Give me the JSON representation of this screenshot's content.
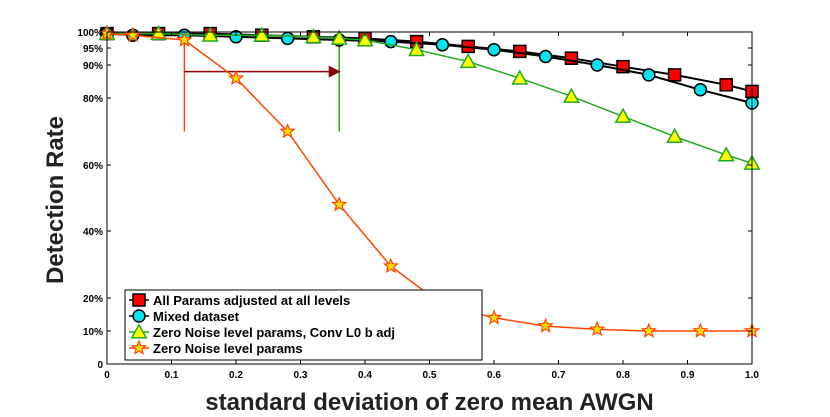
{
  "chart_data": {
    "type": "line",
    "title": "",
    "xlabel": "standard deviation of zero mean AWGN",
    "ylabel": "Detection Rate",
    "xlim": [
      0,
      1.0
    ],
    "ylim": [
      0,
      1.0
    ],
    "grid": false,
    "legend_position": "bottom-left",
    "x_ticks": [
      0,
      0.1,
      0.2,
      0.3,
      0.4,
      0.5,
      0.6,
      0.7,
      0.8,
      0.9,
      1.0
    ],
    "x_tick_labels": [
      "0",
      "0.1",
      "0.2",
      "0.3",
      "0.4",
      "0.5",
      "0.6",
      "0.7",
      "0.8",
      "0.9",
      "1.0"
    ],
    "y_ticks": [
      0,
      0.1,
      0.2,
      0.4,
      0.6,
      0.8,
      0.9,
      0.95,
      1.0
    ],
    "y_tick_labels": [
      "0",
      "10%",
      "20%",
      "40%",
      "60%",
      "80%",
      "90%",
      "95%",
      "100%"
    ],
    "series": [
      {
        "name": "All Params adjusted at all levels",
        "marker": "square",
        "line_color": "#000000",
        "marker_fill": "#ff0000",
        "marker_stroke": "#000000",
        "x": [
          0,
          0.08,
          0.16,
          0.24,
          0.32,
          0.4,
          0.48,
          0.56,
          0.64,
          0.72,
          0.8,
          0.88,
          0.96,
          1.0
        ],
        "y": [
          0.995,
          0.995,
          0.995,
          0.99,
          0.985,
          0.98,
          0.97,
          0.955,
          0.94,
          0.92,
          0.895,
          0.87,
          0.84,
          0.82
        ]
      },
      {
        "name": "Mixed dataset",
        "marker": "circle",
        "line_color": "#000000",
        "marker_fill": "#00e5ee",
        "marker_stroke": "#000000",
        "x": [
          0,
          0.04,
          0.12,
          0.2,
          0.28,
          0.36,
          0.44,
          0.52,
          0.6,
          0.68,
          0.76,
          0.84,
          0.92,
          1.0
        ],
        "y": [
          0.995,
          0.99,
          0.99,
          0.985,
          0.98,
          0.975,
          0.97,
          0.96,
          0.945,
          0.925,
          0.9,
          0.87,
          0.825,
          0.785
        ]
      },
      {
        "name": "Zero Noise level params, Conv L0 b adj",
        "marker": "triangle",
        "line_color": "#22aa22",
        "marker_fill": "#ffff00",
        "marker_stroke": "#22aa22",
        "x": [
          0,
          0.08,
          0.16,
          0.24,
          0.32,
          0.36,
          0.4,
          0.48,
          0.56,
          0.64,
          0.72,
          0.8,
          0.88,
          0.96,
          1.0
        ],
        "y": [
          0.995,
          0.995,
          0.99,
          0.99,
          0.985,
          0.98,
          0.975,
          0.945,
          0.91,
          0.86,
          0.805,
          0.745,
          0.685,
          0.63,
          0.605
        ]
      },
      {
        "name": "Zero Noise level params",
        "marker": "star",
        "line_color": "#ff4500",
        "marker_fill": "#ffdd00",
        "marker_stroke": "#ff4500",
        "x": [
          0,
          0.04,
          0.12,
          0.2,
          0.28,
          0.36,
          0.44,
          0.52,
          0.6,
          0.68,
          0.76,
          0.84,
          0.92,
          1.0
        ],
        "y": [
          0.995,
          0.99,
          0.975,
          0.86,
          0.7,
          0.48,
          0.295,
          0.18,
          0.14,
          0.115,
          0.105,
          0.1,
          0.1,
          0.1
        ]
      }
    ],
    "annotations": [
      {
        "kind": "vertical-line",
        "x": 0.12,
        "y_from": 0.7,
        "y_to": 0.985,
        "color": "#ff4500"
      },
      {
        "kind": "vertical-line",
        "x": 0.36,
        "y_from": 0.7,
        "y_to": 0.985,
        "color": "#22aa22"
      },
      {
        "kind": "arrow",
        "x_from": 0.12,
        "x_to": 0.36,
        "y": 0.88,
        "color": "#8b0000"
      }
    ]
  }
}
